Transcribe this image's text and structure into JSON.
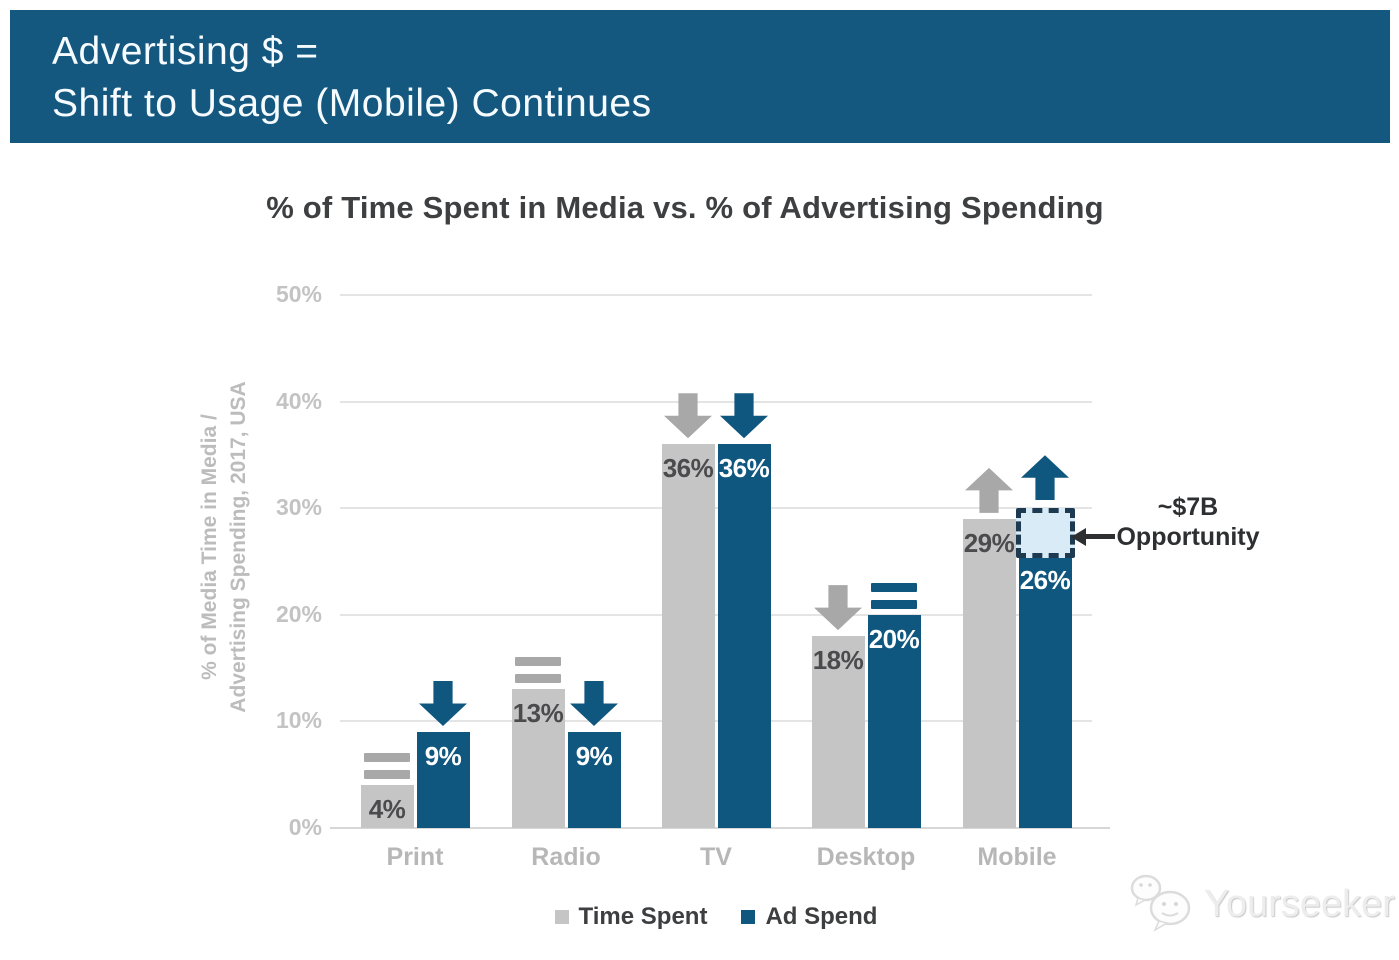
{
  "banner": {
    "line1": "Advertising $ =",
    "line2": "Shift to Usage (Mobile) Continues"
  },
  "chart_title": "% of Time Spent in Media vs. % of Advertising Spending",
  "y_axis_label": {
    "line1": "% of Media Time in Media /",
    "line2": "Advertising Spending, 2017, USA"
  },
  "legend": [
    {
      "id": "time-spent",
      "label": "Time Spent",
      "color": "#c5c5c6"
    },
    {
      "id": "ad-spend",
      "label": "Ad Spend",
      "color": "#10577f"
    }
  ],
  "annotation": {
    "line1": "~$7B",
    "line2": "Opportunity"
  },
  "watermark": "Yourseeker",
  "colors": {
    "banner_bg": "#15587f",
    "bar_gray": "#c5c5c6",
    "bar_blue": "#10577f",
    "indicator_gray": "#a8a8a9",
    "indicator_blue": "#10577f",
    "value_dark": "#4b4b4d",
    "value_light": "#ffffff",
    "grid": "#e4e4e4",
    "tick_text": "#c3c3c3",
    "opportunity_fill": "#d9ebf7",
    "opportunity_border": "#1e3a50"
  },
  "chart_data": {
    "type": "bar",
    "title": "% of Time Spent in Media vs. % of Advertising Spending",
    "ylabel": "% of Media Time in Media / Advertising Spending, 2017, USA",
    "categories": [
      "Print",
      "Radio",
      "TV",
      "Desktop",
      "Mobile"
    ],
    "series": [
      {
        "name": "Time Spent",
        "values": [
          4,
          13,
          36,
          18,
          29
        ],
        "labels": [
          "4%",
          "13%",
          "36%",
          "18%",
          "29%"
        ],
        "color": "#c5c5c6",
        "trend_indicators": [
          "equal",
          "equal",
          "down",
          "down",
          "up"
        ]
      },
      {
        "name": "Ad Spend",
        "values": [
          9,
          9,
          36,
          20,
          26
        ],
        "labels": [
          "9%",
          "9%",
          "36%",
          "20%",
          "26%"
        ],
        "color": "#10577f",
        "trend_indicators": [
          "down",
          "down",
          "down",
          "equal",
          "up"
        ]
      }
    ],
    "y_ticks": [
      0,
      10,
      20,
      30,
      40,
      50
    ],
    "y_tick_labels": [
      "0%",
      "10%",
      "20%",
      "30%",
      "40%",
      "50%"
    ],
    "ylim": [
      0,
      50
    ],
    "grid": true,
    "legend_position": "bottom",
    "annotation": {
      "text": "~$7B Opportunity",
      "target_category": "Mobile",
      "target_series": "Ad Spend",
      "range_pct": [
        26,
        30
      ]
    }
  }
}
